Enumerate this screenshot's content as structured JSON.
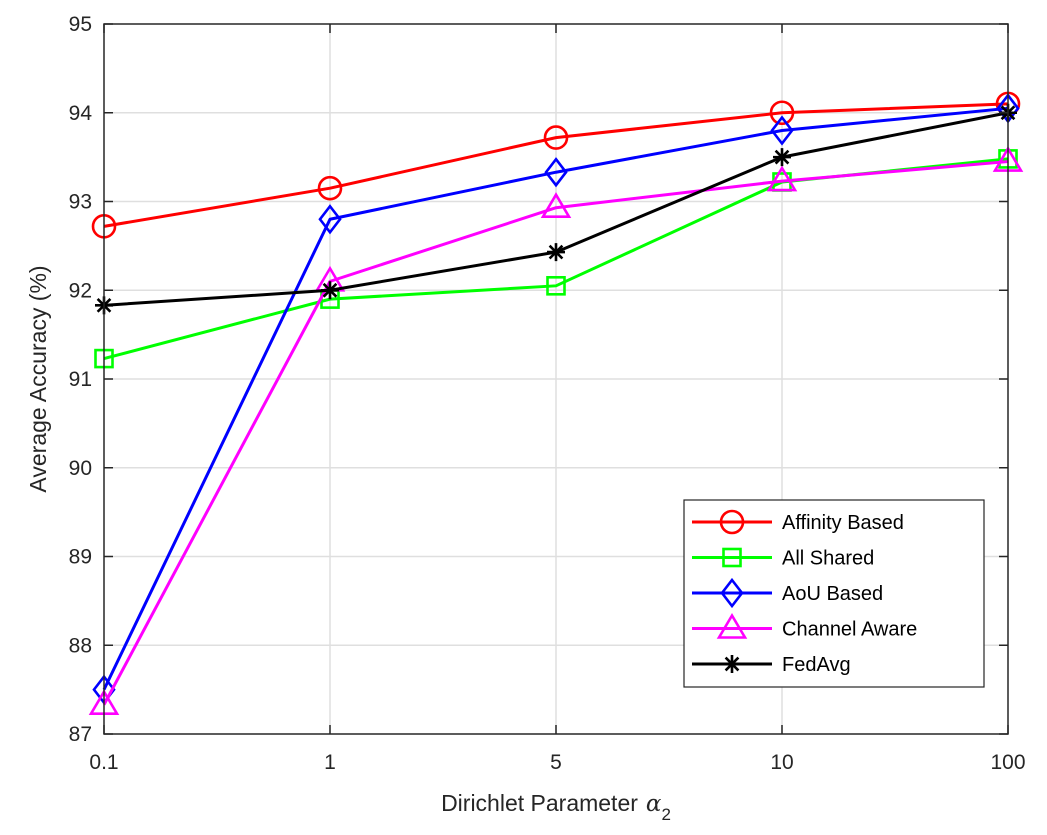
{
  "chart_data": {
    "type": "line",
    "title": "",
    "xlabel": "Dirichlet Parameter",
    "xlabel_symbol": "α",
    "xlabel_subscript": "2",
    "ylabel": "Average Accuracy (%)",
    "categories": [
      "0.1",
      "1",
      "5",
      "10",
      "100"
    ],
    "ylim": [
      87,
      95
    ],
    "yticks": [
      "87",
      "88",
      "89",
      "90",
      "91",
      "92",
      "93",
      "94",
      "95"
    ],
    "grid": true,
    "legend_position": "bottom-right",
    "series": [
      {
        "name": "Affinity Based",
        "color": "#ff0000",
        "marker": "circle",
        "values": [
          92.72,
          93.15,
          93.72,
          94.0,
          94.1
        ]
      },
      {
        "name": "All Shared",
        "color": "#00ff00",
        "marker": "square",
        "values": [
          91.23,
          91.9,
          92.05,
          93.22,
          93.48
        ]
      },
      {
        "name": "AoU Based",
        "color": "#0000ff",
        "marker": "diamond",
        "values": [
          87.5,
          92.8,
          93.33,
          93.8,
          94.05
        ]
      },
      {
        "name": "Channel Aware",
        "color": "#ff00ff",
        "marker": "triangle",
        "values": [
          87.33,
          92.1,
          92.93,
          93.23,
          93.45
        ]
      },
      {
        "name": "FedAvg",
        "color": "#000000",
        "marker": "asterisk",
        "values": [
          91.83,
          92.0,
          92.43,
          93.5,
          94.0
        ]
      }
    ]
  }
}
